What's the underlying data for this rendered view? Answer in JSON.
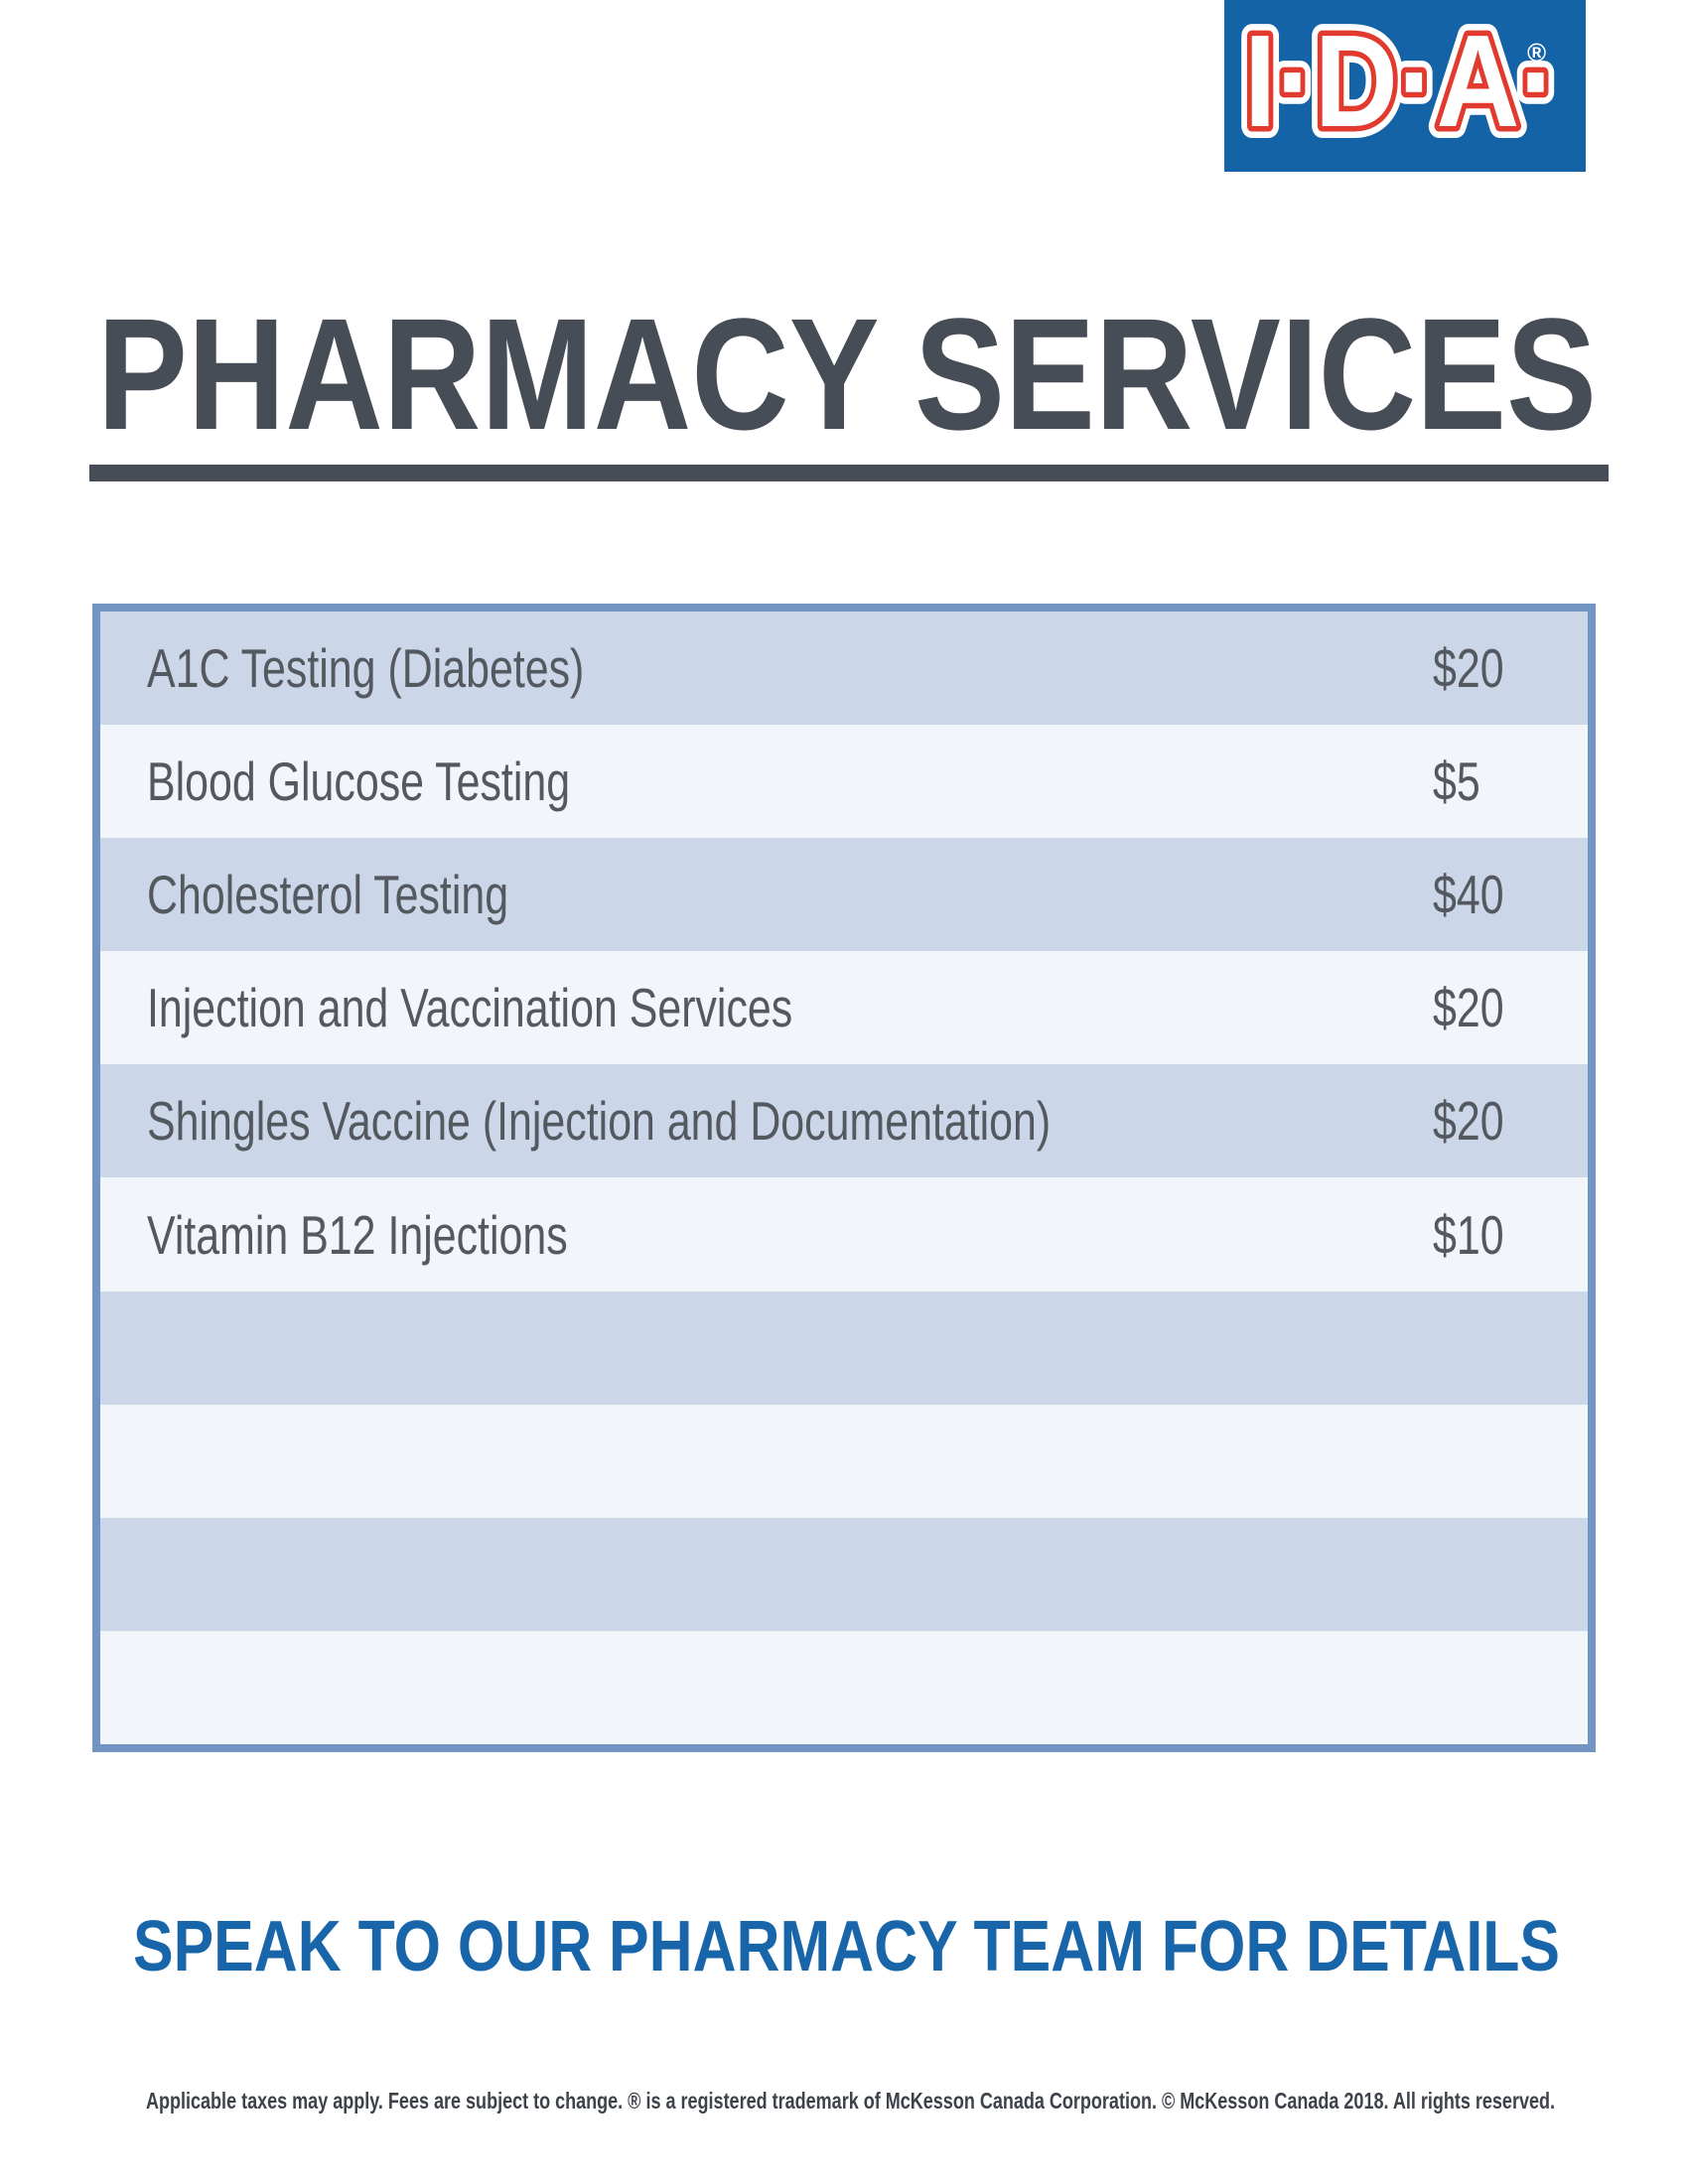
{
  "logo": {
    "text": "I·D·A·",
    "registered": "®"
  },
  "header": {
    "title": "PHARMACY SERVICES"
  },
  "table": {
    "rows": [
      {
        "service": "A1C Testing (Diabetes)",
        "price": "$20"
      },
      {
        "service": "Blood Glucose Testing",
        "price": "$5"
      },
      {
        "service": "Cholesterol Testing",
        "price": "$40"
      },
      {
        "service": "Injection and Vaccination Services",
        "price": "$20"
      },
      {
        "service": "Shingles Vaccine (Injection and Documentation)",
        "price": "$20"
      },
      {
        "service": "Vitamin B12 Injections",
        "price": "$10"
      },
      {
        "service": "",
        "price": ""
      },
      {
        "service": "",
        "price": ""
      },
      {
        "service": "",
        "price": ""
      },
      {
        "service": "",
        "price": ""
      }
    ]
  },
  "footer": {
    "cta": "SPEAK TO OUR PHARMACY TEAM FOR DETAILS",
    "legal": "Applicable taxes may apply. Fees are subject to change. ® is a registered trademark of McKesson Canada Corporation. © McKesson Canada 2018. All rights reserved."
  },
  "colors": {
    "brand_blue": "#1463A6",
    "brand_red": "#E23A2E",
    "title_gray": "#474D57",
    "table_border": "#7394C2",
    "row_dark": "#CCD6E9",
    "row_light": "#F2F5FA",
    "row_text": "#54585F",
    "cta_blue": "#1866A9"
  }
}
